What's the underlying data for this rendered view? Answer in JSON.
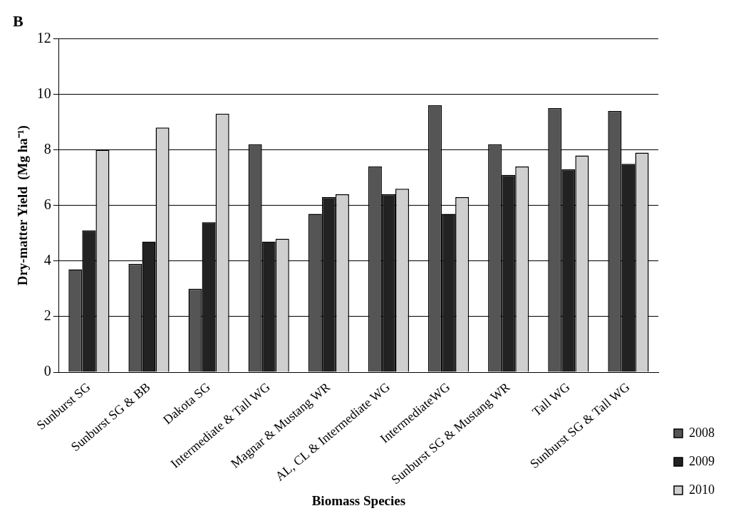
{
  "chart_data": {
    "type": "bar",
    "title": "B",
    "xlabel": "Biomass Species",
    "ylabel": "Dry-matter Yield  (Mg ha⁻¹)",
    "categories": [
      "Sunburst SG",
      "Sunburst SG & BB",
      "Dakota SG",
      "Intermediate & Tall WG",
      "Magnar & Mustang WR",
      "AL, CL & Intermediate WG",
      "IntermediateWG",
      "Sunburst SG & Mustang WR",
      "Tall WG",
      "Sunburst SG & Tall WG"
    ],
    "series": [
      {
        "name": "2008",
        "color": "#555555",
        "values": [
          3.7,
          3.9,
          3.0,
          8.2,
          5.7,
          7.4,
          9.6,
          8.2,
          9.5,
          9.4
        ]
      },
      {
        "name": "2009",
        "color": "#222222",
        "values": [
          5.1,
          4.7,
          5.4,
          4.7,
          6.3,
          6.4,
          5.7,
          7.1,
          7.3,
          7.5
        ]
      },
      {
        "name": "2010",
        "color": "#cfcfcf",
        "values": [
          8.0,
          8.8,
          9.3,
          4.8,
          6.4,
          6.6,
          6.3,
          7.4,
          7.8,
          7.9
        ]
      }
    ],
    "ylim": [
      0,
      12
    ],
    "yticks": [
      0,
      2,
      4,
      6,
      8,
      10,
      12
    ],
    "grid": "y",
    "legend": "bottom right"
  }
}
